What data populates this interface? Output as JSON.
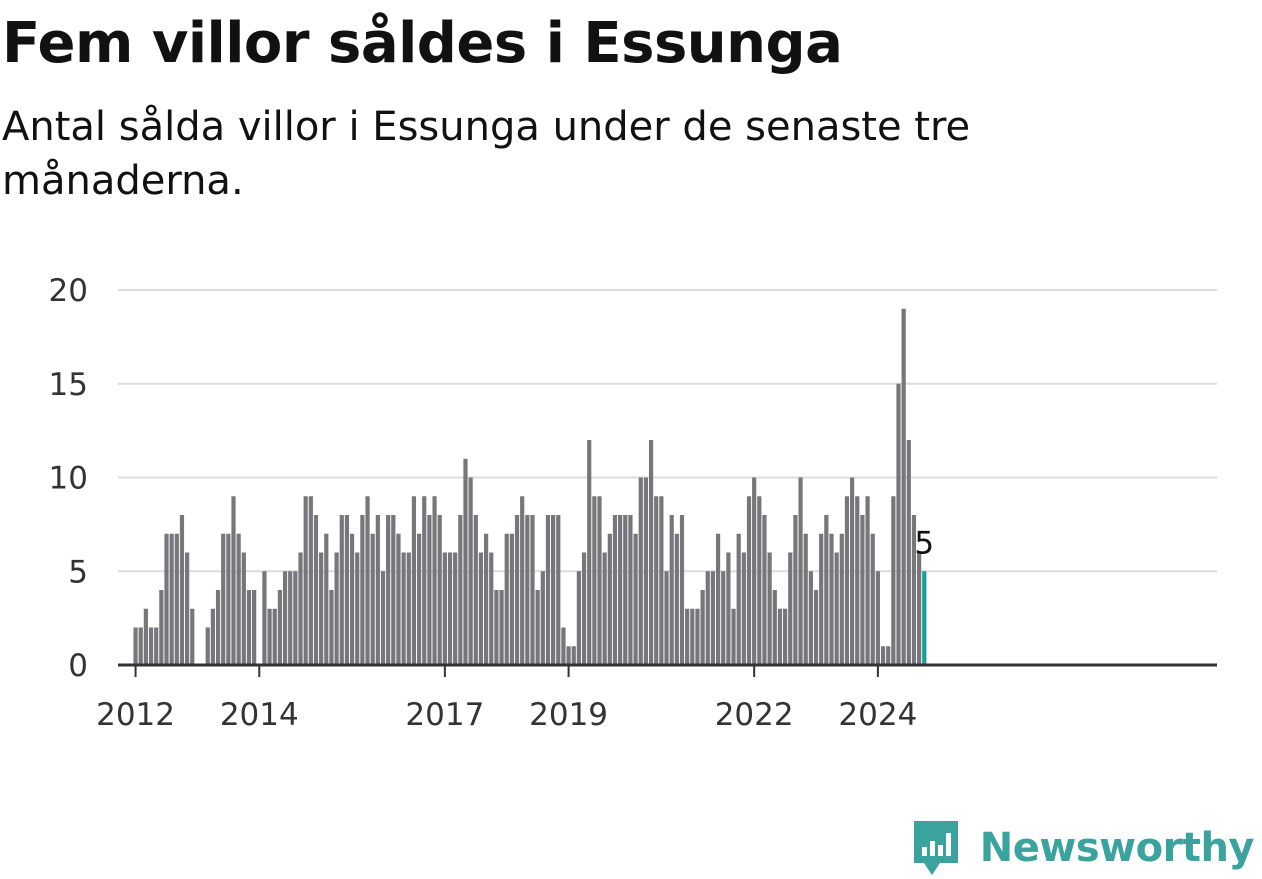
{
  "header": {
    "title": "Fem villor såldes i Essunga",
    "subtitle": "Antal sålda villor i Essunga under de senaste tre månaderna."
  },
  "brand": {
    "name": "Newsworthy",
    "icon": "newsworthy-logo-icon"
  },
  "colors": {
    "bar": "#76767b",
    "highlight": "#1a9f97",
    "brand": "#3aa39d",
    "grid": "#dcdcdc",
    "axis": "#333333"
  },
  "chart_data": {
    "type": "bar",
    "title": "Fem villor såldes i Essunga",
    "xlabel": "",
    "ylabel": "",
    "ylim": [
      0,
      20
    ],
    "yticks": [
      0,
      5,
      10,
      15,
      20
    ],
    "grid": true,
    "start": "2011-10",
    "xtick_labels": [
      {
        "label": "2012",
        "at": "2012-01"
      },
      {
        "label": "2014",
        "at": "2014-01"
      },
      {
        "label": "2017",
        "at": "2017-01"
      },
      {
        "label": "2019",
        "at": "2019-01"
      },
      {
        "label": "2022",
        "at": "2022-01"
      },
      {
        "label": "2024",
        "at": "2024-01"
      }
    ],
    "values": [
      0,
      0,
      0,
      2,
      2,
      3,
      2,
      2,
      4,
      7,
      7,
      7,
      8,
      6,
      3,
      0,
      0,
      2,
      3,
      4,
      7,
      7,
      9,
      7,
      6,
      4,
      4,
      0,
      5,
      3,
      3,
      4,
      5,
      5,
      5,
      6,
      9,
      9,
      8,
      6,
      7,
      4,
      6,
      8,
      8,
      7,
      6,
      8,
      9,
      7,
      8,
      5,
      8,
      8,
      7,
      6,
      6,
      9,
      7,
      9,
      8,
      9,
      8,
      6,
      6,
      6,
      8,
      11,
      10,
      8,
      6,
      7,
      6,
      4,
      4,
      7,
      7,
      8,
      9,
      8,
      8,
      4,
      5,
      8,
      8,
      8,
      2,
      1,
      1,
      5,
      6,
      12,
      9,
      9,
      6,
      7,
      8,
      8,
      8,
      8,
      7,
      10,
      10,
      12,
      9,
      9,
      5,
      8,
      7,
      8,
      3,
      3,
      3,
      4,
      5,
      5,
      7,
      5,
      6,
      3,
      7,
      6,
      9,
      10,
      9,
      8,
      6,
      4,
      3,
      3,
      6,
      8,
      10,
      7,
      5,
      4,
      7,
      8,
      7,
      6,
      7,
      9,
      10,
      9,
      8,
      9,
      7,
      5,
      1,
      1,
      9,
      15,
      19,
      12,
      8,
      6,
      5
    ],
    "highlight_last": true,
    "annotation": "5"
  }
}
